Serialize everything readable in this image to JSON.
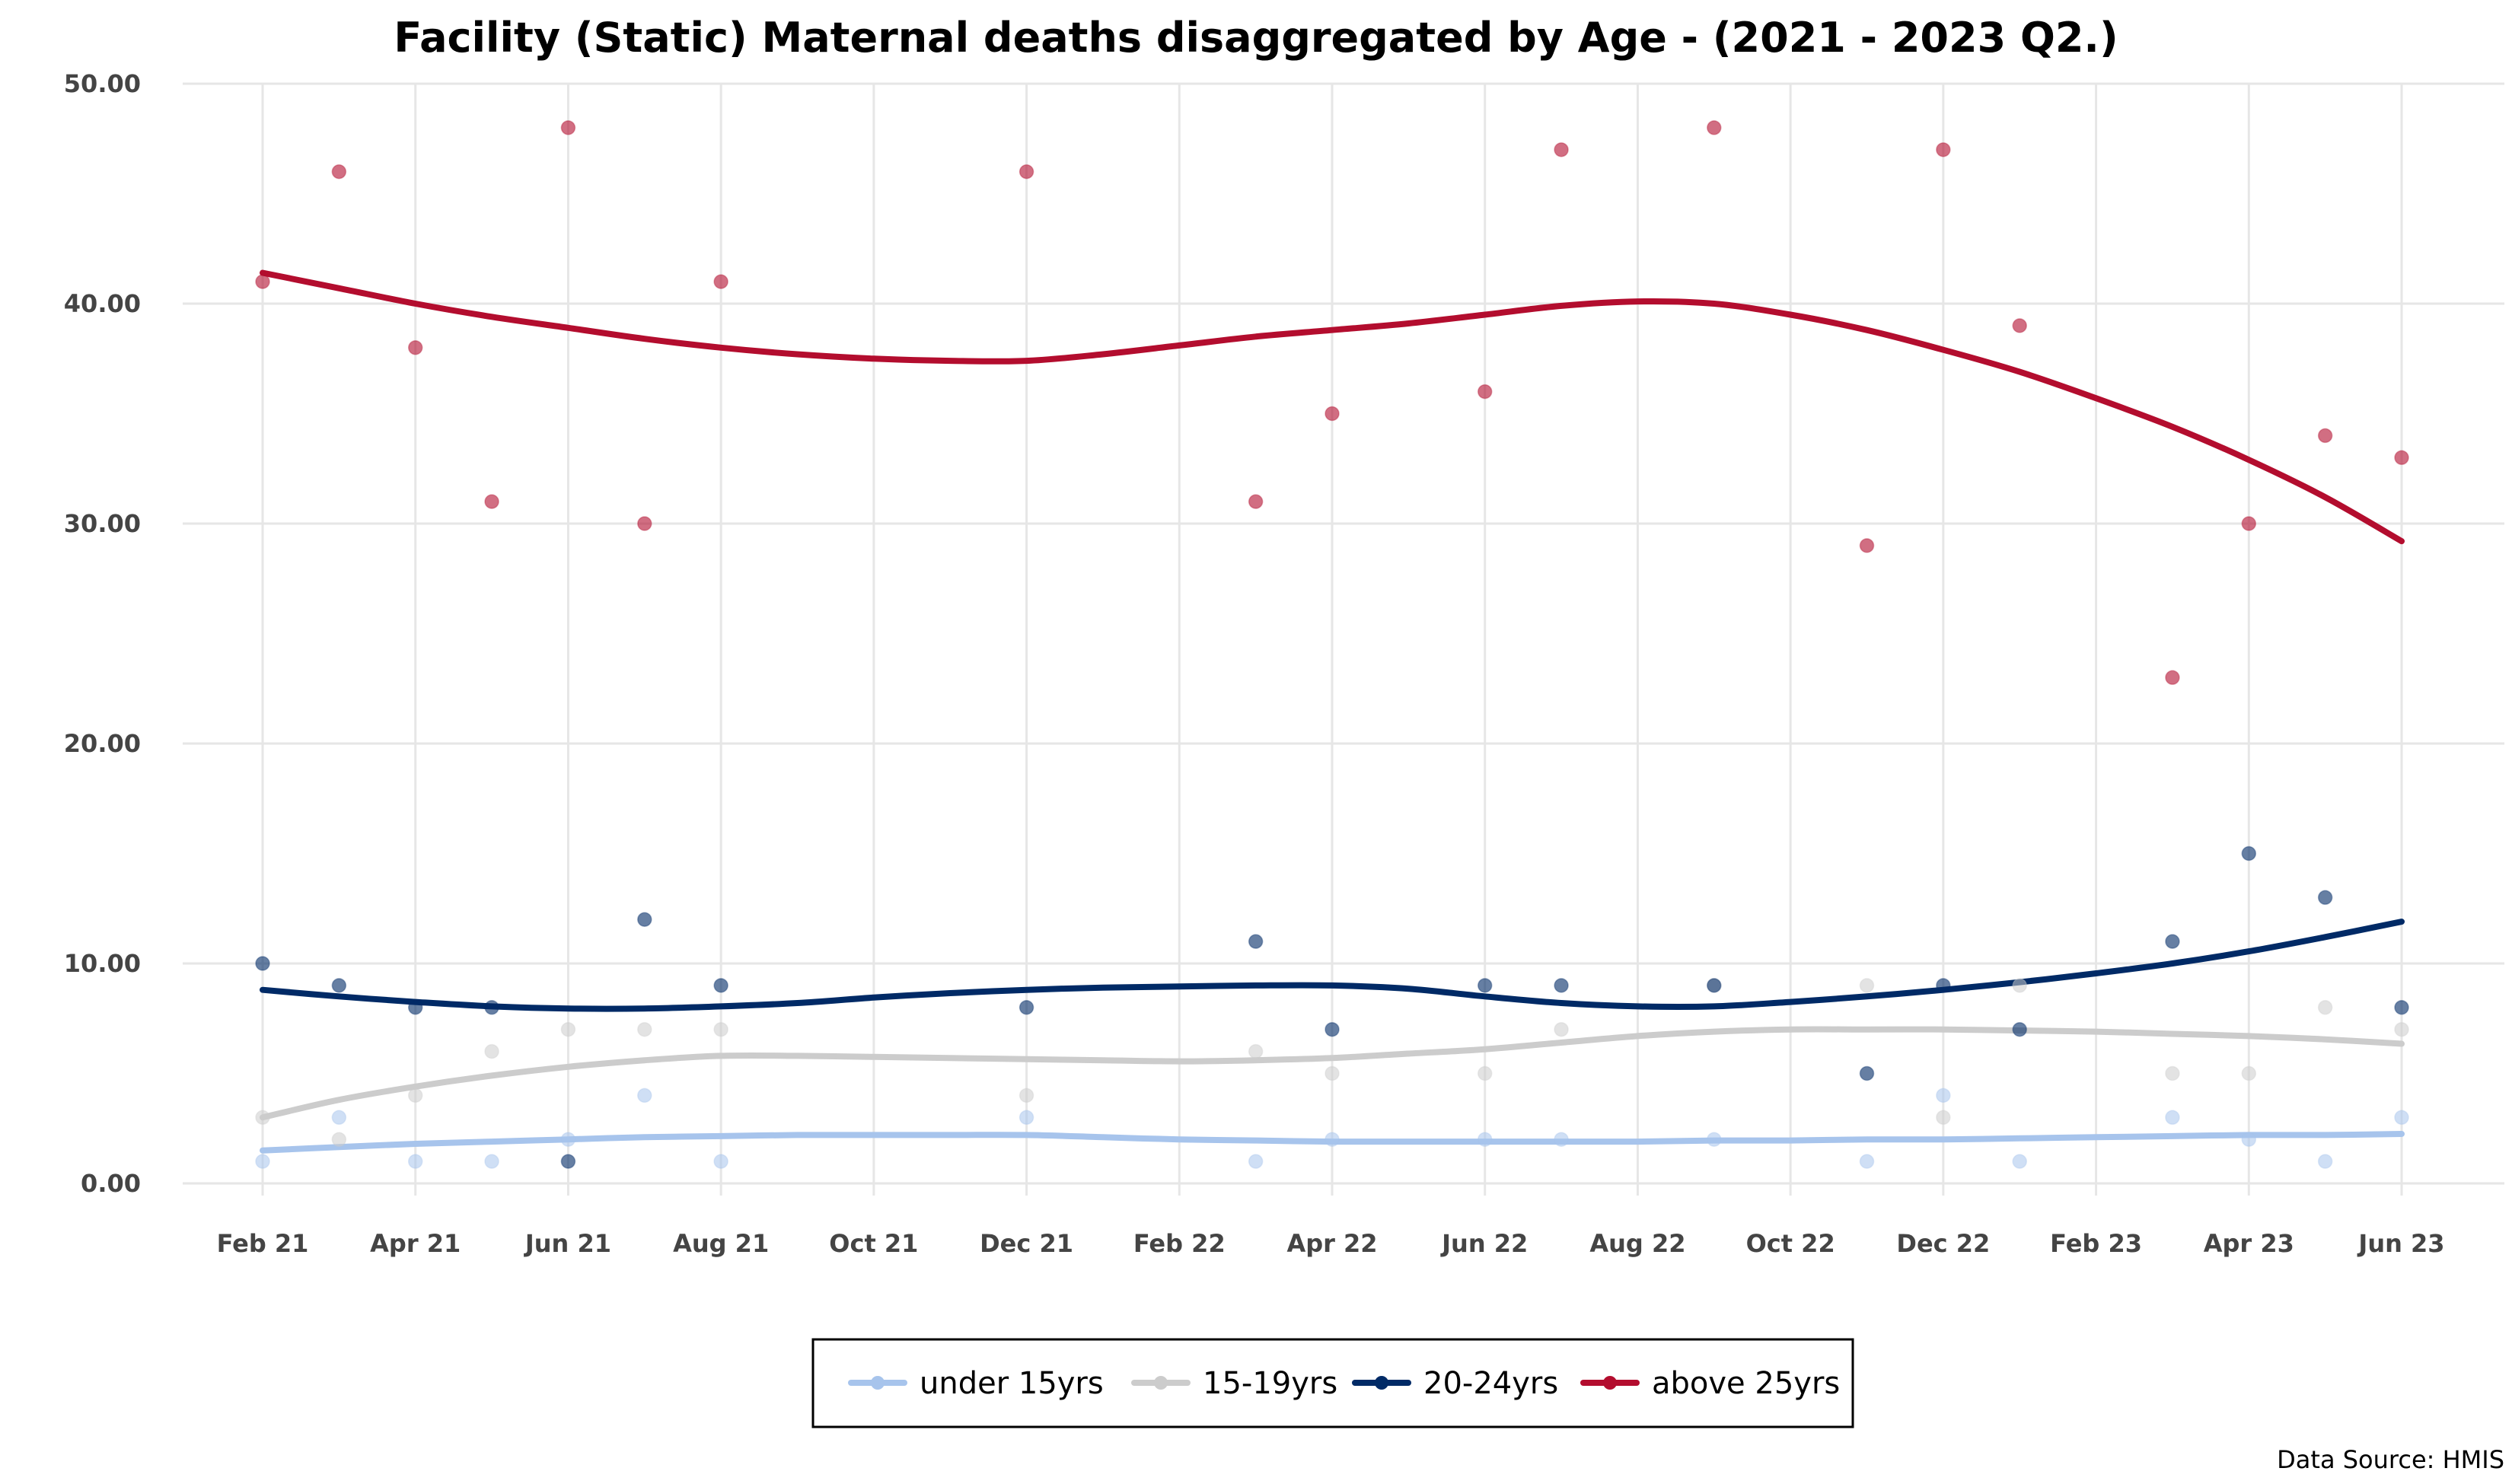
{
  "chart_data": {
    "type": "scatter",
    "title": "Facility (Static) Maternal deaths disaggregated by Age - (2021 - 2023 Q2.)",
    "source_note": "Data Source: HMIS",
    "xlabel": "",
    "ylabel": "",
    "x_start": "2021-02",
    "x_end": "2023-06",
    "x": [
      "Feb 21",
      "Mar 21",
      "Apr 21",
      "May 21",
      "Jun 21",
      "Jul 21",
      "Aug 21",
      "Sep 21",
      "Oct 21",
      "Nov 21",
      "Dec 21",
      "Jan 22",
      "Feb 22",
      "Mar 22",
      "Apr 22",
      "May 22",
      "Jun 22",
      "Jul 22",
      "Aug 22",
      "Sep 22",
      "Oct 22",
      "Nov 22",
      "Dec 22",
      "Jan 23",
      "Feb 23",
      "Mar 23",
      "Apr 23",
      "May 23",
      "Jun 23"
    ],
    "x_ticks": [
      "Feb 21",
      "Apr 21",
      "Jun 21",
      "Aug 21",
      "Oct 21",
      "Dec 21",
      "Feb 22",
      "Apr 22",
      "Jun 22",
      "Aug 22",
      "Oct 22",
      "Dec 22",
      "Feb 23",
      "Apr 23",
      "Jun 23"
    ],
    "y_ticks": [
      "0.00",
      "10.00",
      "20.00",
      "30.00",
      "40.00",
      "50.00"
    ],
    "ylim": [
      0,
      50
    ],
    "grid": true,
    "legend_position": "bottom",
    "series": [
      {
        "name": "under 15yrs",
        "color": "#a7c4ec",
        "values": [
          1,
          3,
          1,
          1,
          2,
          4,
          1,
          null,
          null,
          null,
          3,
          null,
          null,
          1,
          2,
          null,
          2,
          2,
          null,
          2,
          null,
          1,
          4,
          1,
          null,
          3,
          2,
          1,
          3
        ],
        "trend": [
          1.5,
          1.65,
          1.8,
          1.9,
          2.0,
          2.1,
          2.15,
          2.2,
          2.2,
          2.2,
          2.2,
          2.1,
          2.0,
          1.95,
          1.9,
          1.9,
          1.9,
          1.9,
          1.9,
          1.95,
          1.95,
          2.0,
          2.0,
          2.05,
          2.1,
          2.15,
          2.2,
          2.2,
          2.25
        ]
      },
      {
        "name": "15-19yrs",
        "color": "#cccccc",
        "values": [
          3,
          2,
          4,
          6,
          7,
          7,
          7,
          null,
          null,
          null,
          4,
          null,
          null,
          6,
          5,
          null,
          5,
          7,
          null,
          9,
          null,
          9,
          3,
          9,
          null,
          5,
          5,
          8,
          7
        ],
        "trend": [
          3.0,
          3.8,
          4.4,
          4.9,
          5.3,
          5.6,
          5.8,
          5.8,
          5.75,
          5.7,
          5.65,
          5.6,
          5.55,
          5.6,
          5.7,
          5.9,
          6.1,
          6.4,
          6.7,
          6.9,
          7.0,
          7.0,
          7.0,
          6.95,
          6.9,
          6.8,
          6.7,
          6.55,
          6.35
        ]
      },
      {
        "name": "20-24yrs",
        "color": "#002a66",
        "values": [
          10,
          9,
          8,
          8,
          1,
          12,
          9,
          null,
          null,
          null,
          8,
          null,
          null,
          11,
          7,
          null,
          9,
          9,
          null,
          9,
          null,
          5,
          9,
          7,
          null,
          11,
          15,
          13,
          8
        ],
        "trend": [
          8.8,
          8.5,
          8.25,
          8.05,
          7.95,
          7.95,
          8.05,
          8.2,
          8.45,
          8.65,
          8.8,
          8.9,
          8.95,
          9.0,
          9.0,
          8.85,
          8.5,
          8.2,
          8.05,
          8.05,
          8.25,
          8.5,
          8.8,
          9.15,
          9.55,
          10.0,
          10.55,
          11.2,
          11.9
        ]
      },
      {
        "name": "above 25yrs",
        "color": "#b30d2e",
        "values": [
          41,
          46,
          38,
          31,
          48,
          30,
          41,
          null,
          null,
          null,
          46,
          null,
          null,
          31,
          35,
          null,
          36,
          47,
          null,
          48,
          null,
          29,
          47,
          39,
          null,
          23,
          30,
          34,
          33
        ],
        "trend": [
          41.4,
          40.7,
          40.0,
          39.4,
          38.9,
          38.4,
          38.0,
          37.7,
          37.5,
          37.4,
          37.4,
          37.7,
          38.1,
          38.5,
          38.8,
          39.1,
          39.5,
          39.9,
          40.1,
          40.0,
          39.5,
          38.8,
          37.9,
          36.9,
          35.7,
          34.4,
          32.9,
          31.2,
          29.2
        ]
      }
    ]
  }
}
